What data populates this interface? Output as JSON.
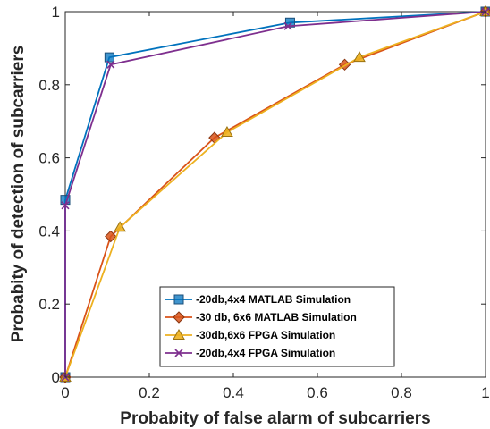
{
  "chart_data": {
    "type": "line",
    "title": "",
    "xlabel": "Probabity of false alarm of subcarriers",
    "ylabel": "Probabity of detection of subcarriers",
    "xlim": [
      0,
      1
    ],
    "ylim": [
      0,
      1
    ],
    "xticks": [
      0,
      0.2,
      0.4,
      0.6,
      0.8,
      1
    ],
    "yticks": [
      0,
      0.2,
      0.4,
      0.6,
      0.8,
      1
    ],
    "xtick_labels": [
      "0",
      "0.2",
      "0.4",
      "0.6",
      "0.8",
      "1"
    ],
    "ytick_labels": [
      "0",
      "0.2",
      "0.4",
      "0.6",
      "0.8",
      "1"
    ],
    "grid": false,
    "legend_position": "bottom-right",
    "series": [
      {
        "name": "-20db,4x4 MATLAB Simulation",
        "color": "#0072BD",
        "marker": "square",
        "x": [
          0,
          0,
          0.105,
          0.535,
          1
        ],
        "y": [
          0,
          0.485,
          0.875,
          0.97,
          1
        ]
      },
      {
        "name": "-30 db, 6x6 MATLAB Simulation",
        "color": "#D95319",
        "marker": "diamond",
        "x": [
          0,
          0.108,
          0.355,
          0.665,
          1
        ],
        "y": [
          0,
          0.385,
          0.655,
          0.855,
          1
        ]
      },
      {
        "name": "-30db,6x6 FPGA Simulation",
        "color": "#EDB120",
        "marker": "triangle",
        "x": [
          0,
          0.13,
          0.385,
          0.7,
          1
        ],
        "y": [
          0,
          0.41,
          0.67,
          0.875,
          1
        ]
      },
      {
        "name": "-20db,4x4 FPGA Simulation",
        "color": "#7E2F8E",
        "marker": "x",
        "x": [
          0,
          0,
          0.108,
          0.53,
          1
        ],
        "y": [
          0,
          0.47,
          0.855,
          0.96,
          1
        ]
      }
    ]
  }
}
